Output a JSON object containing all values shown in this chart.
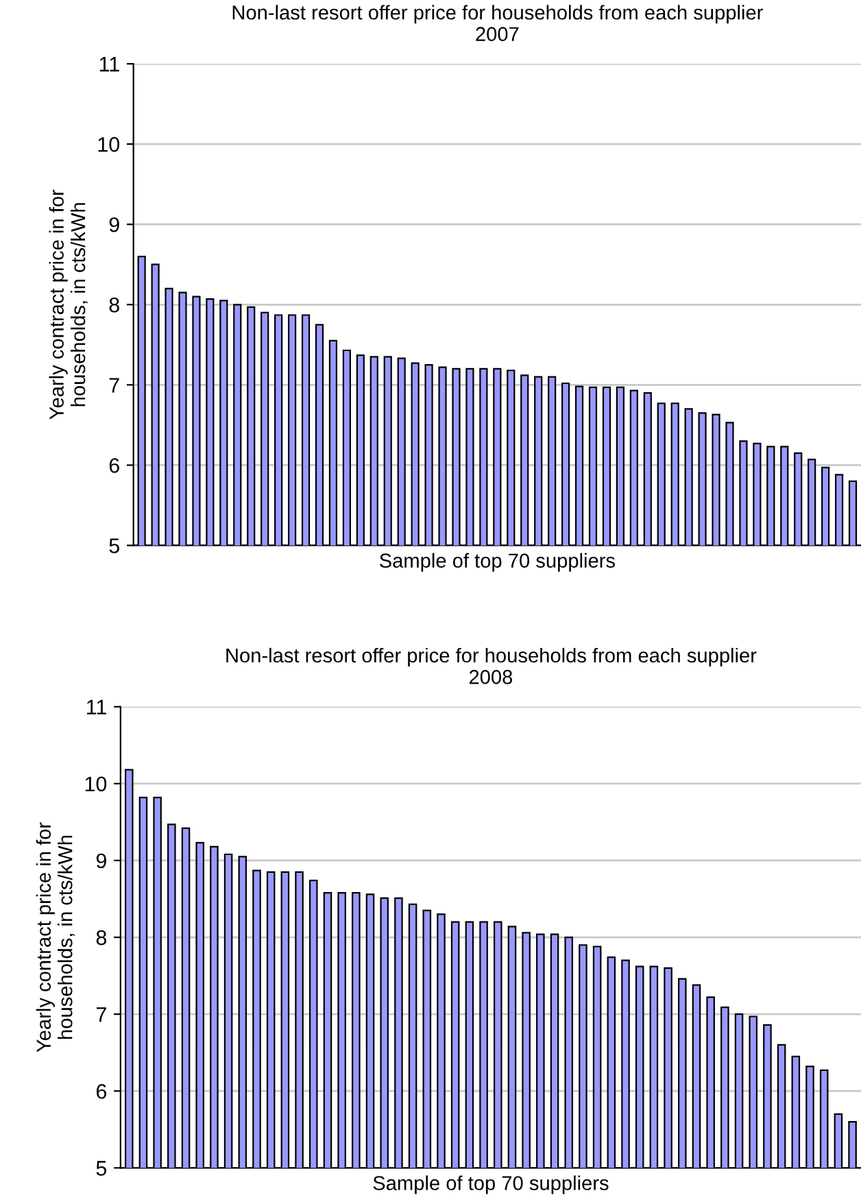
{
  "chart_data": [
    {
      "type": "bar",
      "title": "Non-last resort offer price for households from each supplier\n2007",
      "xlabel": "Sample of top 70 suppliers",
      "ylabel": "Yearly contract price in for\nhouseholds, in cts/kWh",
      "categories": [
        null,
        null,
        null,
        null,
        null,
        null,
        null,
        null,
        null,
        null,
        null,
        null,
        null,
        null,
        null,
        null,
        null,
        null,
        null,
        null,
        null,
        null,
        null,
        null,
        null,
        null,
        null,
        null,
        null,
        null,
        null,
        null,
        null,
        null,
        null,
        null,
        null,
        null,
        null,
        null,
        null,
        null,
        null,
        null,
        null,
        null,
        null,
        null,
        null,
        null,
        null,
        null,
        null
      ],
      "values": [
        8.6,
        8.5,
        8.2,
        8.15,
        8.1,
        8.07,
        8.05,
        8.0,
        7.97,
        7.9,
        7.87,
        7.87,
        7.87,
        7.75,
        7.55,
        7.43,
        7.37,
        7.35,
        7.35,
        7.33,
        7.27,
        7.25,
        7.22,
        7.2,
        7.2,
        7.2,
        7.2,
        7.18,
        7.12,
        7.1,
        7.1,
        7.02,
        6.98,
        6.97,
        6.97,
        6.97,
        6.93,
        6.9,
        6.77,
        6.77,
        6.7,
        6.65,
        6.63,
        6.53,
        6.3,
        6.27,
        6.23,
        6.23,
        6.15,
        6.07,
        5.97,
        5.88,
        5.8
      ],
      "color": "#9999ff",
      "ylim": [
        5,
        11
      ],
      "yticks": [
        5,
        6,
        7,
        8,
        9,
        10,
        11
      ],
      "grid": "y",
      "tick_labels": "y"
    },
    {
      "type": "bar",
      "title": "Non-last resort offer price for households from each supplier\n2008",
      "xlabel": "Sample of top 70 suppliers",
      "ylabel": "Yearly contract price in for\nhouseholds, in cts/kWh",
      "categories": [
        null,
        null,
        null,
        null,
        null,
        null,
        null,
        null,
        null,
        null,
        null,
        null,
        null,
        null,
        null,
        null,
        null,
        null,
        null,
        null,
        null,
        null,
        null,
        null,
        null,
        null,
        null,
        null,
        null,
        null,
        null,
        null,
        null,
        null,
        null,
        null,
        null,
        null,
        null,
        null,
        null,
        null,
        null,
        null,
        null,
        null,
        null,
        null,
        null,
        null,
        null,
        null
      ],
      "values": [
        10.18,
        9.82,
        9.82,
        9.47,
        9.42,
        9.23,
        9.18,
        9.08,
        9.05,
        8.87,
        8.85,
        8.85,
        8.85,
        8.74,
        8.58,
        8.58,
        8.58,
        8.56,
        8.51,
        8.51,
        8.43,
        8.35,
        8.3,
        8.2,
        8.2,
        8.2,
        8.2,
        8.14,
        8.06,
        8.04,
        8.04,
        8.0,
        7.9,
        7.88,
        7.74,
        7.7,
        7.62,
        7.62,
        7.6,
        7.46,
        7.38,
        7.22,
        7.09,
        7.0,
        6.97,
        6.86,
        6.6,
        6.45,
        6.32,
        6.27,
        5.7,
        5.6
      ],
      "color": "#9999ff",
      "ylim": [
        5,
        11
      ],
      "yticks": [
        5,
        6,
        7,
        8,
        9,
        10,
        11
      ],
      "grid": "y",
      "tick_labels": "y"
    }
  ]
}
